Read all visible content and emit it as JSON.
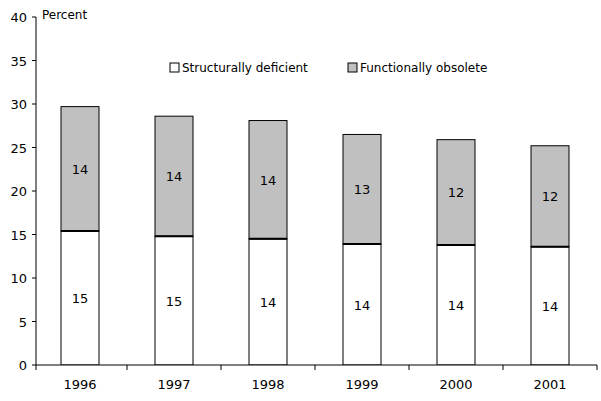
{
  "chart_data": {
    "type": "bar",
    "stacked": true,
    "data_labels": true,
    "legend": "top",
    "grid": false,
    "y_label": "Percent",
    "categories": [
      "1996",
      "1997",
      "1998",
      "1999",
      "2000",
      "2001"
    ],
    "series": [
      {
        "name": "Structurally deficient",
        "color": "#ffffff",
        "values": [
          15.4,
          14.8,
          14.5,
          13.9,
          13.8,
          13.6
        ],
        "value_labels": [
          "15",
          "15",
          "14",
          "14",
          "14",
          "14"
        ]
      },
      {
        "name": "Functionally obsolete",
        "color": "#c0c0c0",
        "values": [
          14.3,
          13.8,
          13.6,
          12.6,
          12.1,
          11.6
        ],
        "value_labels": [
          "14",
          "14",
          "14",
          "13",
          "12",
          "12"
        ]
      }
    ],
    "ylim": [
      0,
      40
    ],
    "yticks": [
      0,
      5,
      10,
      15,
      20,
      25,
      30,
      35,
      40
    ]
  }
}
